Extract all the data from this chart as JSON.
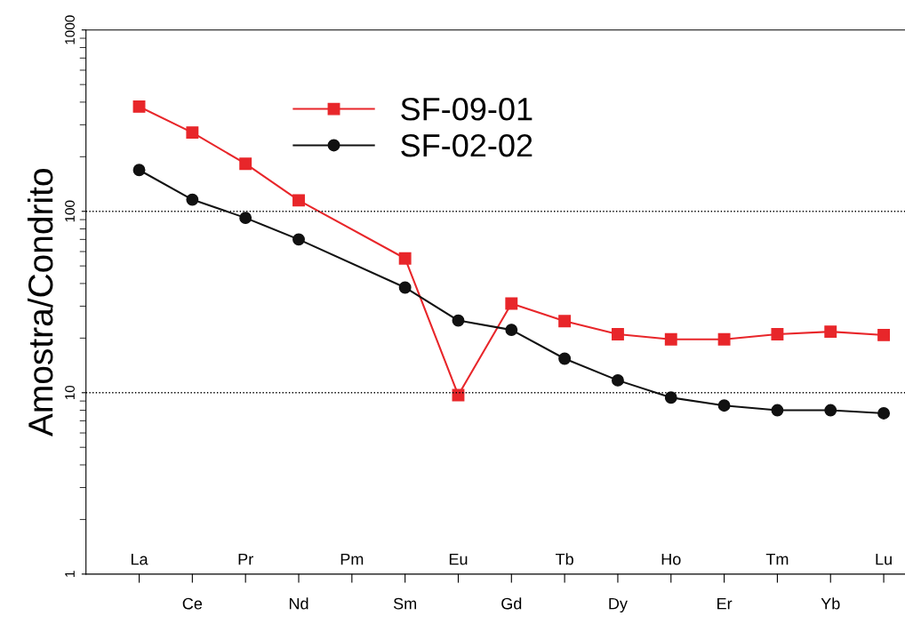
{
  "chart_data": {
    "type": "line",
    "ylabel": "Amostra/Condrito",
    "categories": [
      "La",
      "Ce",
      "Pr",
      "Nd",
      "Pm",
      "Sm",
      "Eu",
      "Gd",
      "Tb",
      "Dy",
      "Ho",
      "Er",
      "Tm",
      "Yb",
      "Lu"
    ],
    "series": [
      {
        "name": "SF-09-01",
        "color": "#e8262a",
        "marker": "square",
        "values": [
          378,
          272,
          183,
          115,
          null,
          55,
          9.7,
          31,
          24.8,
          21,
          19.7,
          19.7,
          21,
          21.7,
          20.8
        ]
      },
      {
        "name": "SF-02-02",
        "color": "#111111",
        "marker": "circle",
        "values": [
          169,
          116,
          92,
          70,
          null,
          38,
          25,
          22.2,
          15.4,
          11.7,
          9.4,
          8.5,
          8.0,
          8.0,
          7.7
        ]
      }
    ],
    "log": "y",
    "ylim": [
      1,
      1000
    ],
    "yticks": [
      1,
      10,
      100,
      1000
    ],
    "ref_lines": [
      {
        "axis": "y",
        "value": 10,
        "line_style": "dotted"
      },
      {
        "axis": "y",
        "value": 100,
        "line_style": "dotted"
      }
    ],
    "legend": "top",
    "grid": false,
    "line_style": "solid"
  }
}
